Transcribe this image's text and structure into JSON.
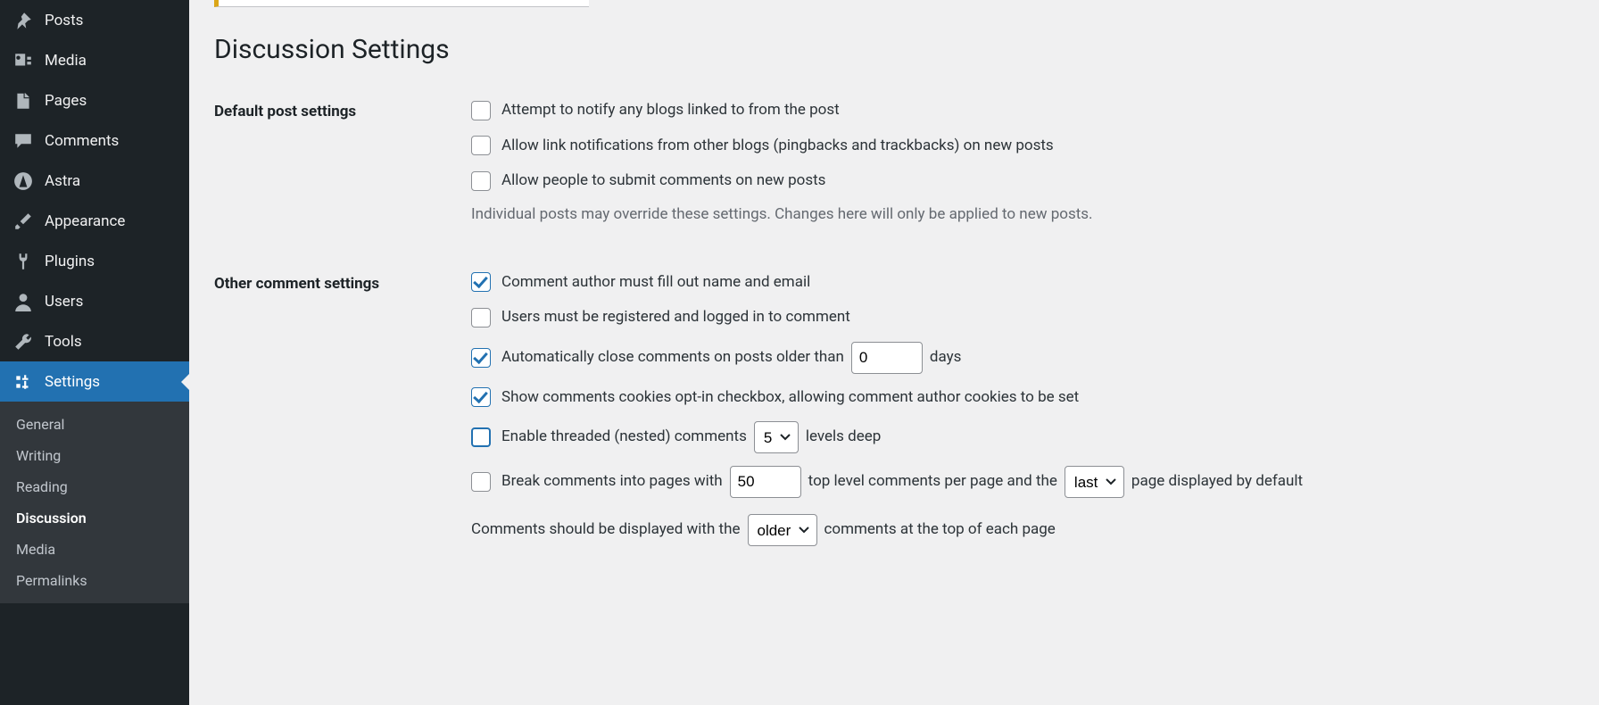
{
  "sidebar": {
    "items": [
      {
        "label": "Posts",
        "icon": "pin"
      },
      {
        "label": "Media",
        "icon": "media"
      },
      {
        "label": "Pages",
        "icon": "pages"
      },
      {
        "label": "Comments",
        "icon": "comment"
      },
      {
        "label": "Astra",
        "icon": "astra"
      },
      {
        "label": "Appearance",
        "icon": "brush"
      },
      {
        "label": "Plugins",
        "icon": "plug"
      },
      {
        "label": "Users",
        "icon": "user"
      },
      {
        "label": "Tools",
        "icon": "wrench"
      },
      {
        "label": "Settings",
        "icon": "sliders",
        "active": true
      }
    ],
    "submenu": [
      "General",
      "Writing",
      "Reading",
      "Discussion",
      "Media",
      "Permalinks"
    ],
    "submenu_current": "Discussion"
  },
  "page": {
    "title": "Discussion Settings"
  },
  "default_post": {
    "heading": "Default post settings",
    "opts": {
      "notify_blogs": "Attempt to notify any blogs linked to from the post",
      "allow_pingbacks": "Allow link notifications from other blogs (pingbacks and trackbacks) on new posts",
      "allow_comments": "Allow people to submit comments on new posts"
    },
    "note": "Individual posts may override these settings. Changes here will only be applied to new posts."
  },
  "other": {
    "heading": "Other comment settings",
    "require_name_email": "Comment author must fill out name and email",
    "require_registration": "Users must be registered and logged in to comment",
    "auto_close_pre": "Automatically close comments on posts older than",
    "auto_close_days": "0",
    "auto_close_post": "days",
    "show_cookies": "Show comments cookies opt-in checkbox, allowing comment author cookies to be set",
    "threaded_pre": "Enable threaded (nested) comments",
    "threaded_levels": "5",
    "threaded_post": "levels deep",
    "paginate_pre": "Break comments into pages with",
    "paginate_per_page": "50",
    "paginate_mid": "top level comments per page and the",
    "paginate_order": "last",
    "paginate_post": "page displayed by default",
    "display_order_pre": "Comments should be displayed with the",
    "display_order": "older",
    "display_order_post": "comments at the top of each page"
  },
  "checks": {
    "notify_blogs": false,
    "allow_pingbacks": false,
    "allow_comments": false,
    "require_name_email": true,
    "require_registration": false,
    "auto_close": true,
    "show_cookies": true,
    "threaded": false,
    "paginate": false
  },
  "colors": {
    "sidebar_bg": "#1d2327",
    "accent": "#2271b1",
    "body_bg": "#f0f0f1",
    "text": "#3c434a",
    "muted": "#646970"
  }
}
